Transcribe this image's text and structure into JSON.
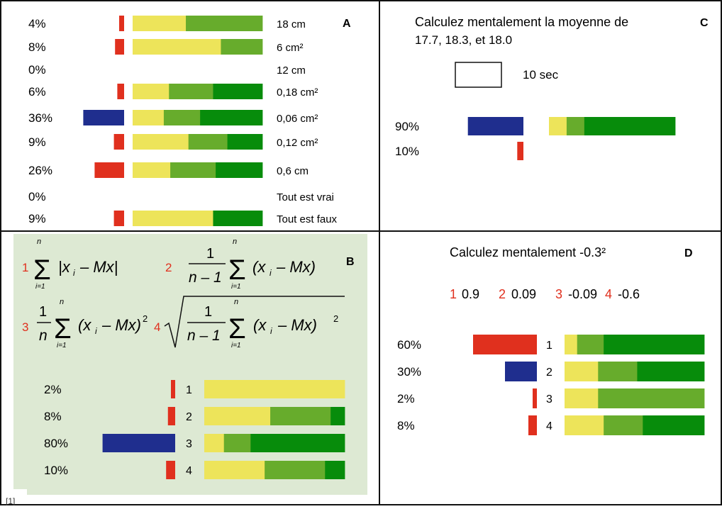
{
  "colors": {
    "red": "#e0301e",
    "blue": "#1f2e8e",
    "yellow": "#ede45a",
    "lightgreen": "#67ac2c",
    "darkgreen": "#078c0b",
    "panel_b_bg": "#dde9d3"
  },
  "chart_data": [
    {
      "panel": "A",
      "type": "bar",
      "panel_letter": "A",
      "rows": [
        {
          "percent_label": "4%",
          "answer": "18 cm",
          "vote": 4,
          "vote_color": "red",
          "confidence": [
            0.41,
            0.59,
            0
          ]
        },
        {
          "percent_label": "8%",
          "answer": "6 cm²",
          "vote": 8,
          "vote_color": "red",
          "confidence": [
            0.68,
            0.32,
            0
          ]
        },
        {
          "percent_label": "0%",
          "answer": "12 cm",
          "vote": 0,
          "vote_color": "red",
          "confidence": [
            0,
            0,
            0
          ]
        },
        {
          "percent_label": "6%",
          "answer": "0,18 cm²",
          "vote": 6,
          "vote_color": "red",
          "confidence": [
            0.28,
            0.34,
            0.38
          ]
        },
        {
          "percent_label": "36%",
          "answer": "0,06 cm²",
          "vote": 36,
          "vote_color": "blue",
          "confidence": [
            0.24,
            0.28,
            0.48
          ]
        },
        {
          "percent_label": "9%",
          "answer": "0,12 cm²",
          "vote": 9,
          "vote_color": "red",
          "confidence": [
            0.43,
            0.3,
            0.27
          ]
        },
        {
          "percent_label": "26%",
          "answer": "0,6 cm",
          "vote": 26,
          "vote_color": "red",
          "confidence": [
            0.29,
            0.35,
            0.36
          ]
        },
        {
          "percent_label": "0%",
          "answer": "Tout est vrai",
          "vote": 0,
          "vote_color": "red",
          "confidence": [
            0,
            0,
            0
          ]
        },
        {
          "percent_label": "9%",
          "answer": "Tout est faux",
          "vote": 9,
          "vote_color": "red",
          "confidence": [
            0.62,
            0,
            0.38
          ]
        }
      ]
    },
    {
      "panel": "B",
      "type": "bar",
      "panel_letter": "B",
      "formula_numbers": [
        "1",
        "2",
        "3",
        "4"
      ],
      "formulas": [
        "Σ|xᵢ − Mx|",
        "1/(n−1) Σ(xᵢ − Mx)",
        "1/n Σ(xᵢ − Mx)²",
        "√(1/(n−1) Σ(xᵢ − Mx)²)"
      ],
      "rows": [
        {
          "percent_label": "2%",
          "answer": "1",
          "vote": 2,
          "vote_color": "red",
          "confidence": [
            1.0,
            0,
            0
          ]
        },
        {
          "percent_label": "8%",
          "answer": "2",
          "vote": 8,
          "vote_color": "red",
          "confidence": [
            0.47,
            0.43,
            0.1
          ]
        },
        {
          "percent_label": "80%",
          "answer": "3",
          "vote": 80,
          "vote_color": "blue",
          "confidence": [
            0.14,
            0.19,
            0.67
          ]
        },
        {
          "percent_label": "10%",
          "answer": "4",
          "vote": 10,
          "vote_color": "red",
          "confidence": [
            0.43,
            0.43,
            0.14
          ]
        }
      ],
      "footnote": "[1]"
    },
    {
      "panel": "C",
      "type": "bar",
      "panel_letter": "C",
      "question_line1": "Calculez mentalement la moyenne de",
      "question_line2": "17.7, 18.3, et 18.0",
      "timer_label": "10 sec",
      "rows": [
        {
          "percent_label": "90%",
          "vote": 90,
          "vote_color": "blue",
          "confidence": [
            0.14,
            0.14,
            0.72
          ]
        },
        {
          "percent_label": "10%",
          "vote": 10,
          "vote_color": "red",
          "confidence": [
            0,
            0,
            0
          ]
        }
      ]
    },
    {
      "panel": "D",
      "type": "bar",
      "panel_letter": "D",
      "question": "Calculez mentalement -0.3²",
      "options": [
        {
          "number": "1",
          "value": "0.9"
        },
        {
          "number": "2",
          "value": "0.09"
        },
        {
          "number": "3",
          "value": "-0.09"
        },
        {
          "number": "4",
          "value": "-0.6"
        }
      ],
      "rows": [
        {
          "percent_label": "60%",
          "answer": "1",
          "vote": 60,
          "vote_color": "red",
          "confidence": [
            0.09,
            0.19,
            0.72
          ]
        },
        {
          "percent_label": "30%",
          "answer": "2",
          "vote": 30,
          "vote_color": "blue",
          "confidence": [
            0.24,
            0.28,
            0.48
          ]
        },
        {
          "percent_label": "2%",
          "answer": "3",
          "vote": 2,
          "vote_color": "red",
          "confidence": [
            0.24,
            0.76,
            0
          ]
        },
        {
          "percent_label": "8%",
          "answer": "4",
          "vote": 8,
          "vote_color": "red",
          "confidence": [
            0.28,
            0.28,
            0.44
          ]
        }
      ]
    }
  ]
}
